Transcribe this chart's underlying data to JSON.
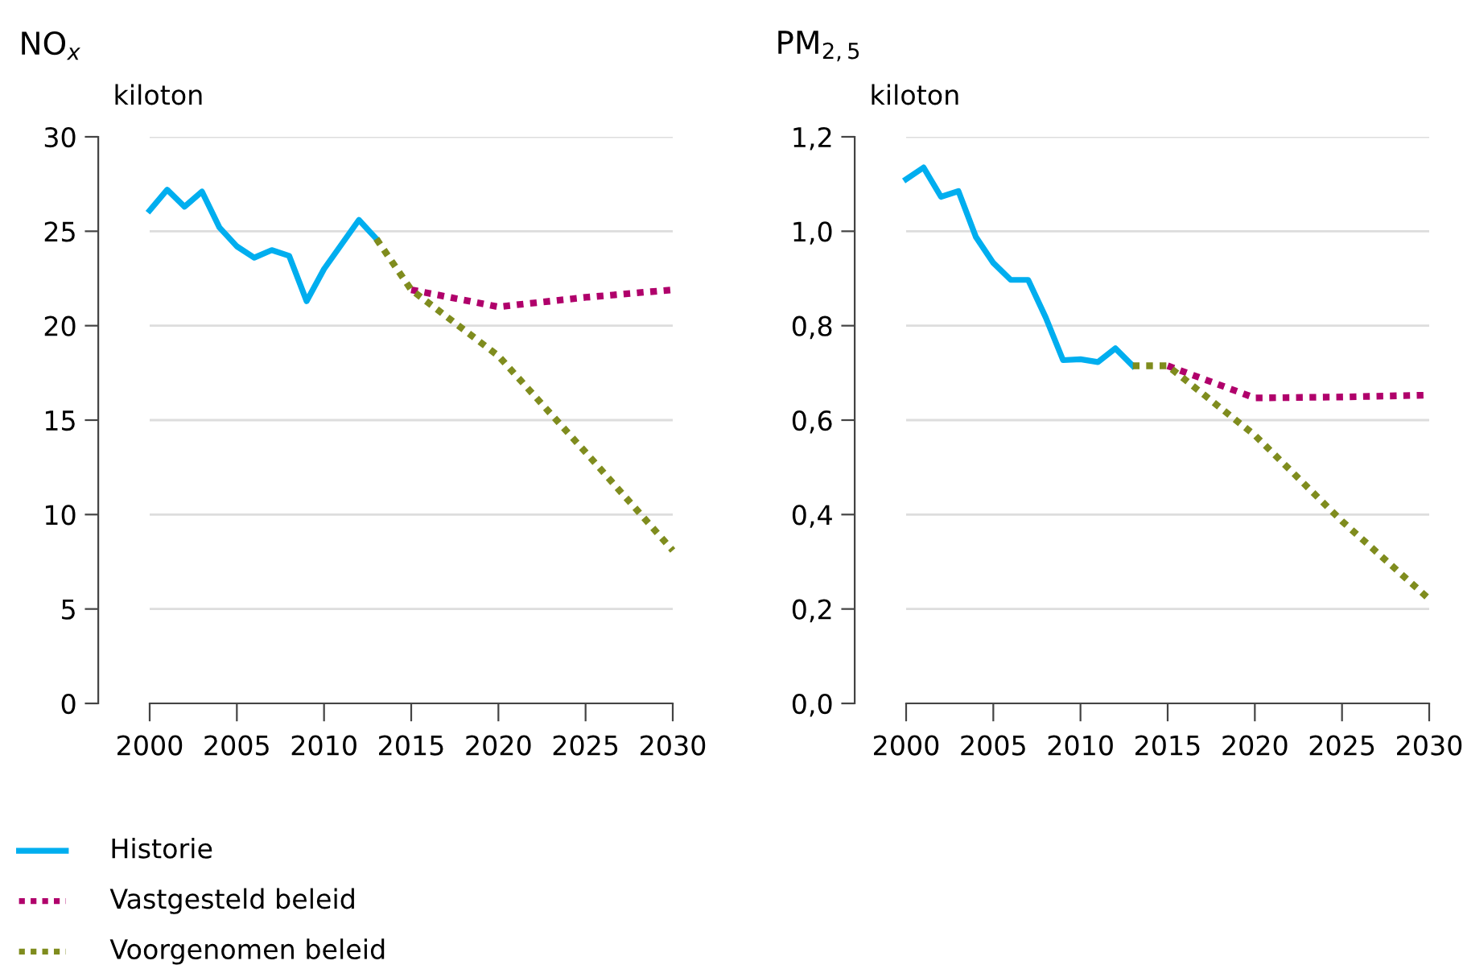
{
  "chart_data": [
    {
      "type": "line",
      "title": "NO$_{x}$",
      "ylabel": "kiloton",
      "xlim": [
        2000,
        2030
      ],
      "xticks": [
        2000,
        2005,
        2010,
        2015,
        2020,
        2025,
        2030
      ],
      "ylim": [
        0,
        30
      ],
      "yticks": [
        0,
        5,
        10,
        15,
        20,
        25,
        30
      ],
      "grid": "y",
      "legend": "bottom",
      "series": [
        {
          "name": "Historie",
          "color": "#00aeef",
          "line_style": "solid",
          "x": [
            2000,
            2001,
            2002,
            2003,
            2004,
            2005,
            2006,
            2007,
            2008,
            2009,
            2010,
            2011,
            2012,
            2013
          ],
          "values": [
            26.1,
            27.2,
            26.3,
            27.1,
            25.2,
            24.2,
            23.6,
            24.0,
            23.7,
            21.3,
            23.0,
            24.3,
            25.6,
            24.6
          ]
        },
        {
          "name": "Vastgesteld beleid",
          "color": "#b0006b",
          "line_style": "dotted",
          "x": [
            2015,
            2020,
            2025,
            2030
          ],
          "values": [
            21.9,
            21.0,
            21.5,
            21.9
          ]
        },
        {
          "name": "Voorgenomen beleid",
          "color": "#7f8c1e",
          "line_style": "dotted",
          "x": [
            2013,
            2015,
            2020,
            2025,
            2030
          ],
          "values": [
            24.6,
            21.9,
            18.4,
            13.3,
            8.1
          ]
        }
      ]
    },
    {
      "type": "line",
      "title": "PM$_{2,5}$",
      "ylabel": "kiloton",
      "xlim": [
        2000,
        2030
      ],
      "xticks": [
        2000,
        2005,
        2010,
        2015,
        2020,
        2025,
        2030
      ],
      "ylim": [
        0,
        1.2
      ],
      "yticks": [
        {
          "value": 0,
          "label": "0,0"
        },
        {
          "value": 0.2,
          "label": "0,2"
        },
        {
          "value": 0.4,
          "label": "0,4"
        },
        {
          "value": 0.6,
          "label": "0,6"
        },
        {
          "value": 0.8,
          "label": "0,8"
        },
        {
          "value": 1.0,
          "label": "1,0"
        },
        {
          "value": 1.2,
          "label": "1,2"
        }
      ],
      "grid": "y",
      "legend": "bottom",
      "series": [
        {
          "name": "Historie",
          "color": "#00aeef",
          "line_style": "solid",
          "x": [
            2000,
            2001,
            2002,
            2003,
            2004,
            2005,
            2006,
            2007,
            2008,
            2009,
            2010,
            2011,
            2012,
            2013
          ],
          "values": [
            1.11,
            1.135,
            1.073,
            1.085,
            0.988,
            0.933,
            0.897,
            0.897,
            0.818,
            0.727,
            0.729,
            0.723,
            0.752,
            0.715
          ]
        },
        {
          "name": "Vastgesteld beleid",
          "color": "#b0006b",
          "line_style": "dotted",
          "x": [
            2015,
            2020,
            2025,
            2030
          ],
          "values": [
            0.715,
            0.647,
            0.649,
            0.653
          ]
        },
        {
          "name": "Voorgenomen beleid",
          "color": "#7f8c1e",
          "line_style": "dotted",
          "x": [
            2013,
            2015,
            2020,
            2025,
            2030
          ],
          "values": [
            0.715,
            0.715,
            0.568,
            0.386,
            0.221
          ]
        }
      ]
    }
  ]
}
